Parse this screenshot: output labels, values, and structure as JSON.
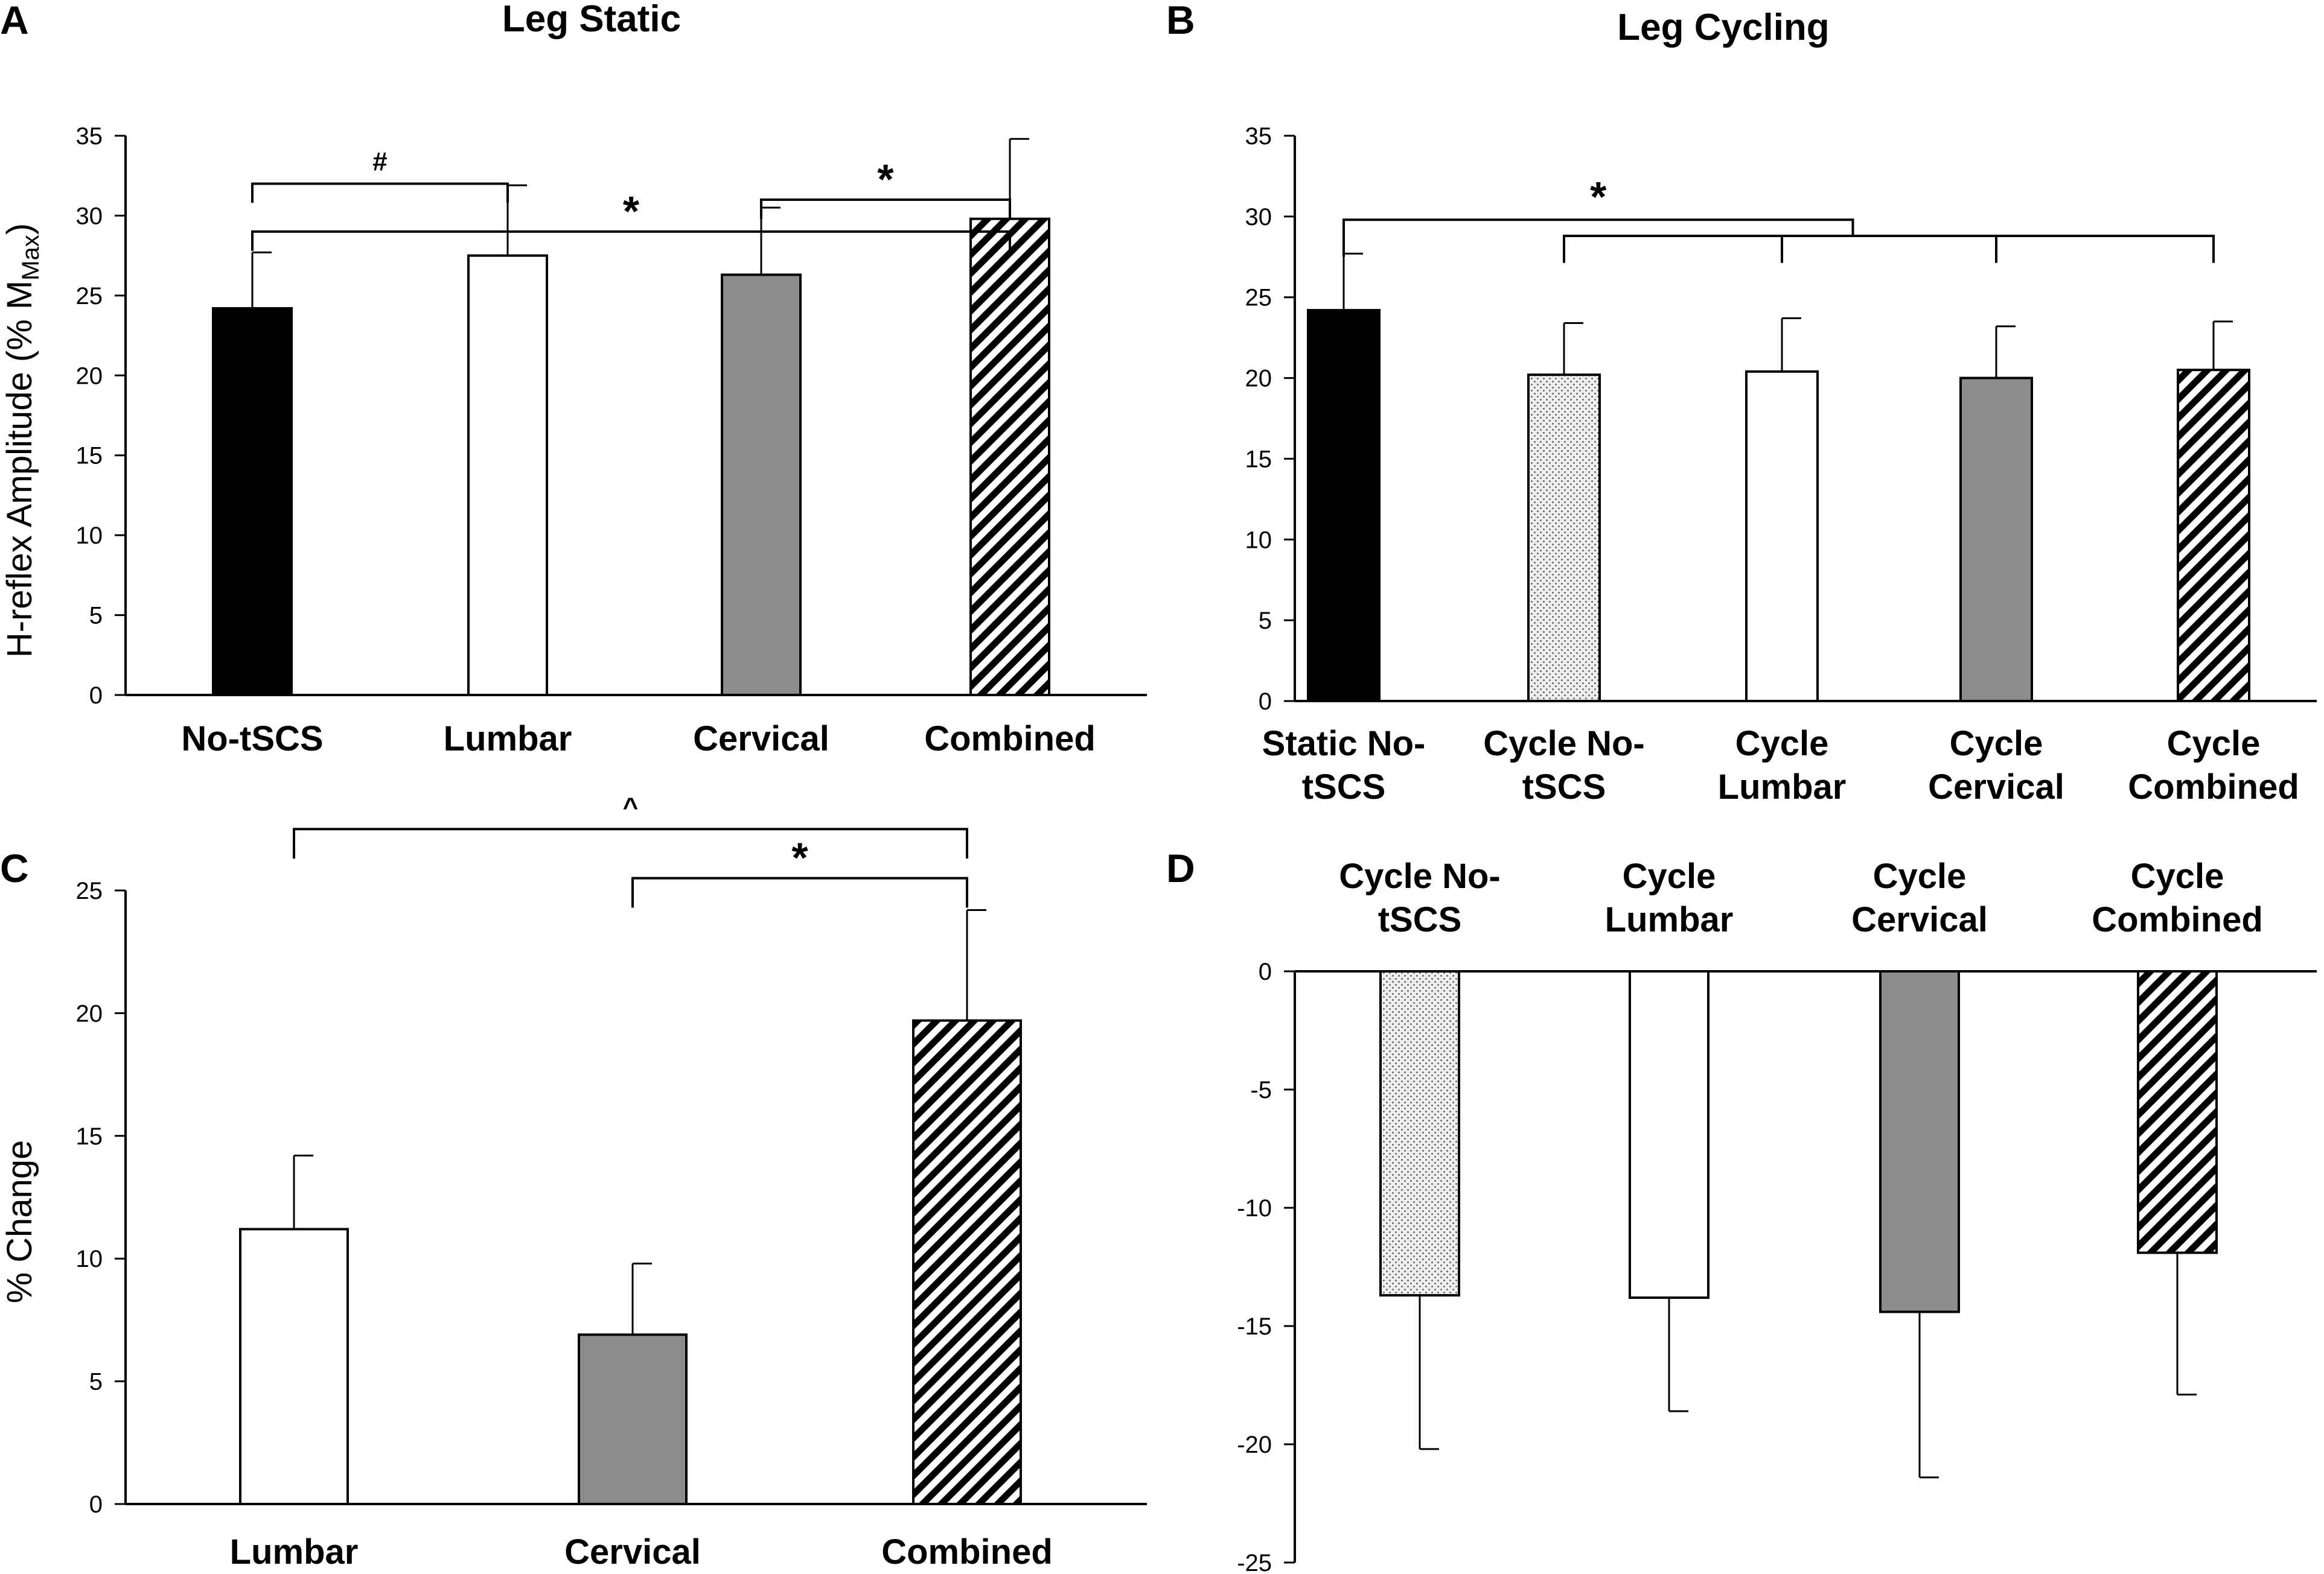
{
  "chart_data": [
    {
      "panel": "A",
      "type": "bar",
      "title": "Leg Static",
      "ylabel_main": "H-reflex Amplitude (% M",
      "ylabel_sub": "Max",
      "ylabel_end": ")",
      "xlabel": "",
      "ylim": [
        0,
        35
      ],
      "yticks": [
        0,
        5,
        10,
        15,
        20,
        25,
        30,
        35
      ],
      "categories": [
        [
          "No-tSCS"
        ],
        [
          "Lumbar"
        ],
        [
          "Cervical"
        ],
        [
          "Combined"
        ]
      ],
      "values": [
        24.2,
        27.5,
        26.3,
        29.8
      ],
      "errors": [
        3.5,
        4.4,
        4.2,
        5.0
      ],
      "fills": [
        "black",
        "white",
        "gray",
        "hatch"
      ],
      "brackets": [
        {
          "from": 0,
          "to": 1,
          "label": "#",
          "level": 32.0
        },
        {
          "from": 0,
          "to": 3,
          "label": "*",
          "level": 29.0,
          "top": 29.6
        },
        {
          "from": 2,
          "to": 3,
          "label": "*",
          "level": 31.0
        }
      ]
    },
    {
      "panel": "B",
      "type": "bar",
      "title": "Leg Cycling",
      "xlabel": "",
      "ylabel_main": "",
      "ylim": [
        0,
        35
      ],
      "yticks": [
        0,
        5,
        10,
        15,
        20,
        25,
        30,
        35
      ],
      "categories": [
        [
          "Static No-",
          "tSCS"
        ],
        [
          "Cycle No-",
          "tSCS"
        ],
        [
          "Cycle",
          "Lumbar"
        ],
        [
          "Cycle",
          "Cervical"
        ],
        [
          "Cycle",
          "Combined"
        ]
      ],
      "values": [
        24.2,
        20.2,
        20.4,
        20.0,
        20.5
      ],
      "errors": [
        3.5,
        3.2,
        3.3,
        3.2,
        3.0
      ],
      "fills": [
        "black",
        "dots",
        "white",
        "gray",
        "hatch"
      ],
      "annotation": "*"
    },
    {
      "panel": "C",
      "type": "bar",
      "title": "",
      "xlabel": "",
      "ylabel_main": "% Change",
      "ylim": [
        0,
        25
      ],
      "yticks": [
        0,
        5,
        10,
        15,
        20,
        25
      ],
      "categories": [
        [
          "Lumbar"
        ],
        [
          "Cervical"
        ],
        [
          "Combined"
        ]
      ],
      "values": [
        11.2,
        6.9,
        19.7
      ],
      "errors": [
        3.0,
        2.9,
        4.5
      ],
      "fills": [
        "white",
        "gray",
        "hatch"
      ],
      "brackets": [
        {
          "from": 0,
          "to": 2,
          "label": "^",
          "level": 27.5
        },
        {
          "from": 1,
          "to": 2,
          "label": "*",
          "level": 25.5
        }
      ]
    },
    {
      "panel": "D",
      "type": "bar",
      "title": "",
      "xlabel": "",
      "ylabel_main": "",
      "ylim": [
        -25,
        0
      ],
      "yticks": [
        0,
        -5,
        -10,
        -15,
        -20,
        -25
      ],
      "categories": [
        [
          "Cycle No-",
          "tSCS"
        ],
        [
          "Cycle",
          "Lumbar"
        ],
        [
          "Cycle",
          "Cervical"
        ],
        [
          "Cycle",
          "Combined"
        ]
      ],
      "values": [
        -13.7,
        -13.8,
        -14.4,
        -11.9
      ],
      "errors": [
        6.5,
        4.8,
        7.0,
        6.0
      ],
      "fills": [
        "dots",
        "white",
        "gray",
        "hatch"
      ]
    }
  ]
}
